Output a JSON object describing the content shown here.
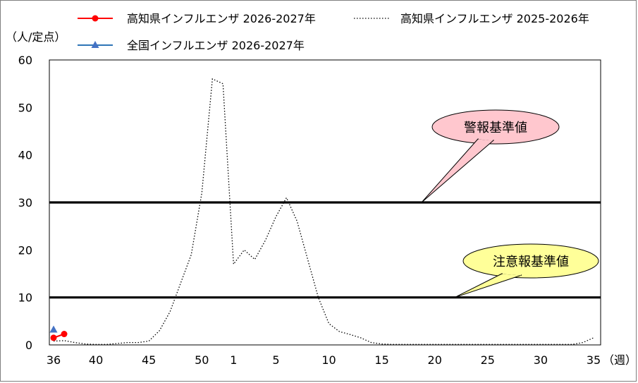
{
  "chart_data": {
    "type": "line",
    "y_unit": "（人/定点）",
    "x_unit": "（週）",
    "ylim": [
      0,
      60
    ],
    "yticks": [
      0,
      10,
      20,
      30,
      40,
      50,
      60
    ],
    "x_ticks": [
      "36",
      "40",
      "45",
      "50",
      "1",
      "5",
      "10",
      "15",
      "20",
      "25",
      "30",
      "35"
    ],
    "legend": [
      {
        "label": "高知県インフルエンザ 2026-2027年",
        "color": "#ff0000",
        "marker": "circle"
      },
      {
        "label": "高知県インフルエンザ 2025-2026年",
        "color": "#000000",
        "style": "dotted"
      },
      {
        "label": "全国インフルエンザ 2026-2027年",
        "color": "#2e75b6",
        "marker": "triangle"
      }
    ],
    "series": [
      {
        "name": "高知県インフルエンザ 2026-2027年",
        "color": "#ff0000",
        "x": [
          36,
          37
        ],
        "values": [
          1.5,
          2.3
        ]
      },
      {
        "name": "全国インフルエンザ 2026-2027年",
        "color": "#4472c4",
        "x": [
          36
        ],
        "values": [
          3.2
        ]
      },
      {
        "name": "高知県インフルエンザ 2025-2026年",
        "color": "#000000",
        "x": [
          36,
          37,
          38,
          39,
          40,
          41,
          42,
          43,
          44,
          45,
          46,
          47,
          48,
          49,
          50,
          51,
          52,
          1,
          2,
          3,
          4,
          5,
          6,
          7,
          8,
          9,
          10,
          11,
          12,
          13,
          14,
          15,
          16,
          17,
          18,
          19,
          20,
          21,
          22,
          23,
          24,
          25,
          26,
          27,
          28,
          29,
          30,
          31,
          32,
          33,
          34,
          35
        ],
        "values": [
          0.8,
          0.9,
          0.5,
          0.2,
          0.1,
          0.1,
          0.3,
          0.5,
          0.5,
          0.8,
          3,
          7,
          13,
          19,
          32,
          56,
          55,
          17,
          20,
          18,
          22,
          27,
          31,
          26,
          18,
          10,
          4.5,
          2.8,
          2.2,
          1.5,
          0.5,
          0.2,
          0.1,
          0.1,
          0.1,
          0.1,
          0.1,
          0.1,
          0.1,
          0.1,
          0.1,
          0.1,
          0.1,
          0.1,
          0.1,
          0.1,
          0.1,
          0.1,
          0.1,
          0.1,
          0.5,
          1.5
        ]
      }
    ],
    "thresholds": [
      {
        "label": "警報基準値",
        "value": 30,
        "fill": "#ffc7ce"
      },
      {
        "label": "注意報基準値",
        "value": 10,
        "fill": "#ffff99"
      }
    ]
  }
}
